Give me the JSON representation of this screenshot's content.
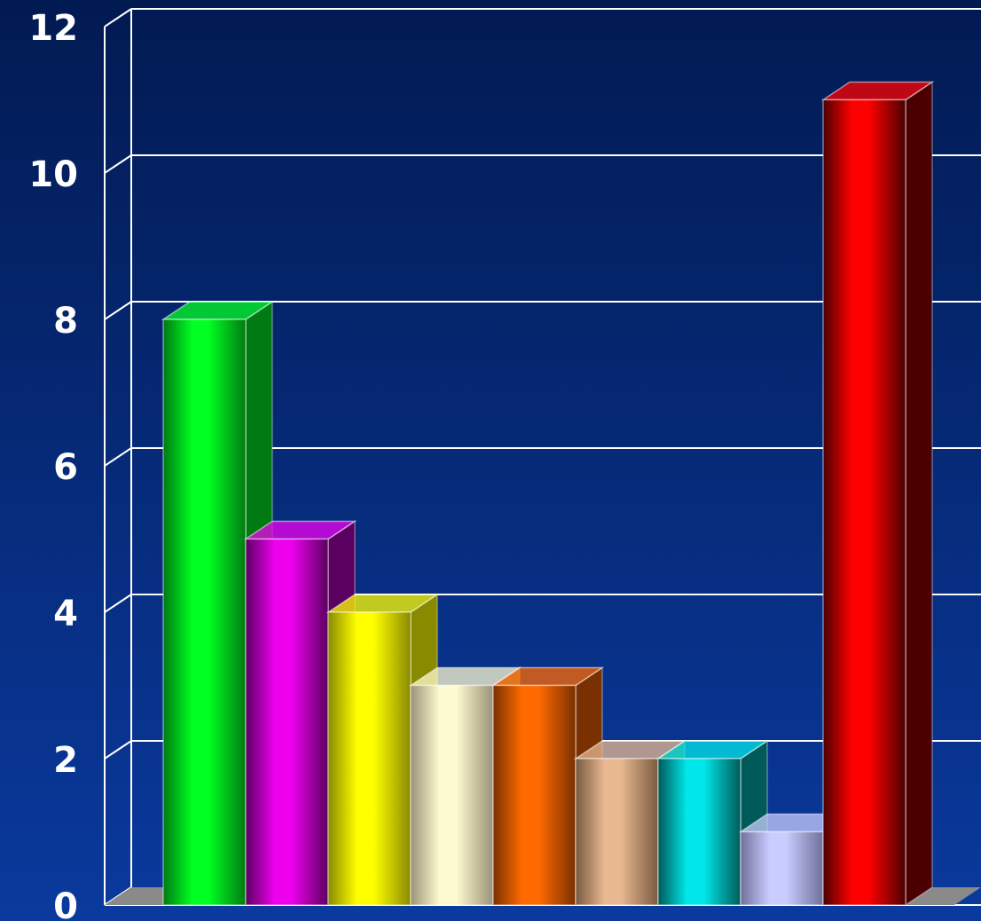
{
  "chart_data": {
    "type": "bar",
    "style": "3d",
    "title": "",
    "xlabel": "",
    "ylabel": "",
    "ylim": [
      0,
      12
    ],
    "yticks": [
      0,
      2,
      4,
      6,
      8,
      10,
      12
    ],
    "ytick_labels": [
      "0",
      "2",
      "4",
      "6",
      "8",
      "10",
      "12"
    ],
    "grid": true,
    "legend": "none",
    "categories": [
      "",
      "",
      "",
      "",
      "",
      "",
      "",
      "",
      ""
    ],
    "values": [
      8,
      5,
      4,
      3,
      3,
      2,
      2,
      1,
      11
    ],
    "bar_colors": [
      "#00ff22",
      "#ee00ee",
      "#ffff00",
      "#fffbd0",
      "#ff6a00",
      "#e8b890",
      "#00e8ea",
      "#c8ccff",
      "#ff0000"
    ],
    "bar_depth_colors": [
      "#007a12",
      "#5a0060",
      "#8a8a00",
      "#9a9278",
      "#7a3000",
      "#7a5a40",
      "#005a5a",
      "#70709a",
      "#4a0000"
    ],
    "background_top": "#021a52",
    "background_bottom": "#0a3a9e",
    "gridline_color": "#ffffff",
    "floor_color": "#8a8a8a"
  }
}
